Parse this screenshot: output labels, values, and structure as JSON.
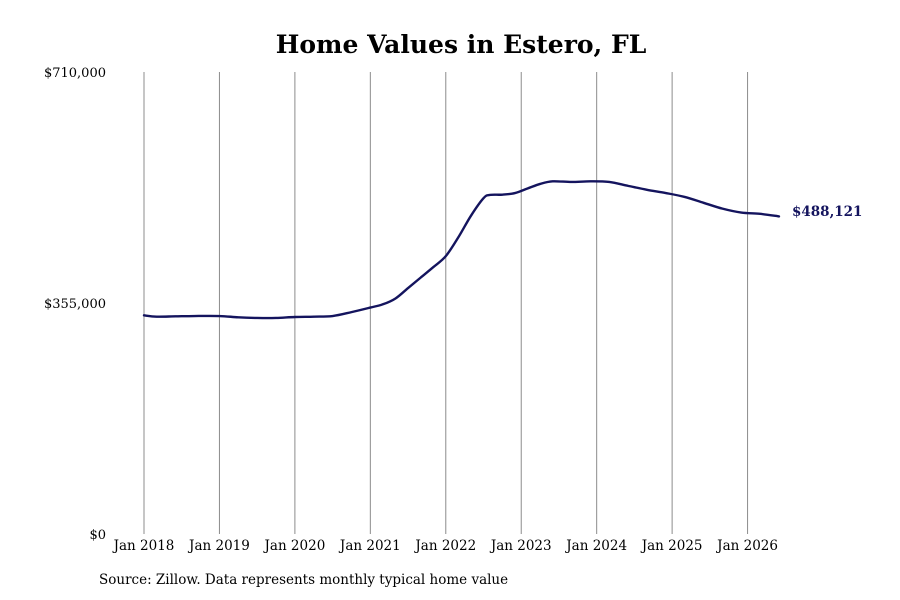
{
  "chart_data": {
    "type": "line",
    "title": "Home Values in Estero, FL",
    "xlabel": "",
    "ylabel": "",
    "ylim": [
      0,
      710000
    ],
    "yticks": [
      0,
      355000,
      710000
    ],
    "ytick_labels": [
      "$0",
      "$355,000",
      "$710,000"
    ],
    "xticks": [
      "2018-01",
      "2019-01",
      "2020-01",
      "2021-01",
      "2022-01",
      "2023-01",
      "2024-01",
      "2025-01",
      "2026-01"
    ],
    "xtick_labels": [
      "Jan 2018",
      "Jan 2019",
      "Jan 2020",
      "Jan 2021",
      "Jan 2022",
      "Jan 2023",
      "Jan 2024",
      "Jan 2025",
      "Jan 2026"
    ],
    "xlim": [
      "2018-01",
      "2026-06"
    ],
    "grid": "vertical",
    "legend": "none",
    "color": "#14145e",
    "end_label": "$488,121",
    "series": [
      {
        "x": [
          "2018-01",
          "2018-03",
          "2018-06",
          "2018-09",
          "2019-01",
          "2019-04",
          "2019-07",
          "2019-10",
          "2020-01",
          "2020-04",
          "2020-07",
          "2020-10",
          "2021-01",
          "2021-03",
          "2021-05",
          "2021-07",
          "2021-09",
          "2021-11",
          "2022-01",
          "2022-03",
          "2022-05",
          "2022-07",
          "2022-08",
          "2022-10",
          "2022-12",
          "2023-02",
          "2023-04",
          "2023-06",
          "2023-09",
          "2023-12",
          "2024-03",
          "2024-06",
          "2024-09",
          "2024-12",
          "2025-03",
          "2025-06",
          "2025-09",
          "2025-12",
          "2026-03",
          "2026-06"
        ],
        "y": [
          336000,
          334000,
          334500,
          335000,
          335000,
          333000,
          332000,
          332000,
          333500,
          334000,
          335000,
          341000,
          348000,
          353000,
          362000,
          378000,
          394000,
          410000,
          427000,
          456000,
          489000,
          516000,
          521000,
          521500,
          524000,
          531000,
          538000,
          542000,
          541000,
          542000,
          541000,
          535000,
          529000,
          524000,
          518000,
          509000,
          500000,
          494000,
          492000,
          488121
        ]
      }
    ]
  },
  "footer": {
    "source": "Source: Zillow. Data represents monthly typical home value"
  }
}
